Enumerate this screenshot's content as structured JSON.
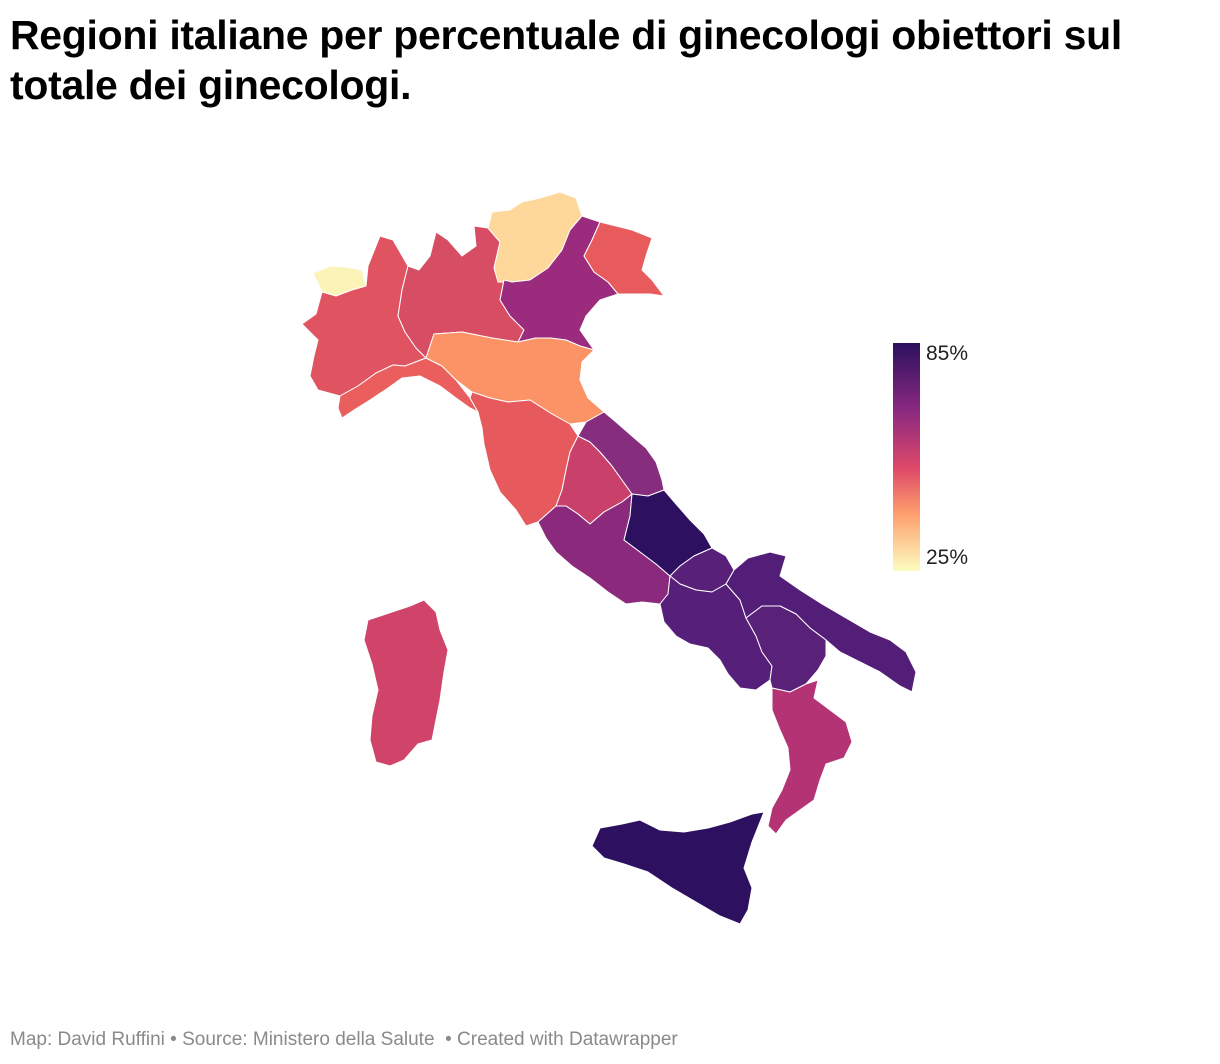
{
  "title": "Regioni italiane per percentuale di ginecologi obiettori sul totale dei ginecologi.",
  "legend": {
    "max_label": "85%",
    "min_label": "25%",
    "max_value": 85,
    "min_value": 25,
    "color_high": "#2c115f",
    "color_low": "#fcfdbf"
  },
  "footer": {
    "map_credit": "Map: David Ruffini",
    "source": "Source: Ministero della Salute",
    "created": "Created with Datawrapper",
    "separator": "•"
  },
  "regions": [
    {
      "name": "Valle d'Aosta",
      "value": 25,
      "color": "#fcf3b8"
    },
    {
      "name": "Piemonte",
      "value": 60,
      "color": "#df5460"
    },
    {
      "name": "Lombardia",
      "value": 61,
      "color": "#d74d64"
    },
    {
      "name": "Trentino-Alto Adige",
      "value": 35,
      "color": "#fed89b"
    },
    {
      "name": "Veneto",
      "value": 73,
      "color": "#9b2b7c"
    },
    {
      "name": "Friuli-Venezia Giulia",
      "value": 58,
      "color": "#e85b5d"
    },
    {
      "name": "Liguria",
      "value": 57,
      "color": "#ea5e5e"
    },
    {
      "name": "Emilia-Romagna",
      "value": 45,
      "color": "#fc9366"
    },
    {
      "name": "Toscana",
      "value": 57,
      "color": "#e65a5e"
    },
    {
      "name": "Umbria",
      "value": 65,
      "color": "#c9416b"
    },
    {
      "name": "Marche",
      "value": 73,
      "color": "#862d7e"
    },
    {
      "name": "Lazio",
      "value": 74,
      "color": "#8b2a7d"
    },
    {
      "name": "Abruzzo",
      "value": 84,
      "color": "#2d1160"
    },
    {
      "name": "Molise",
      "value": 80,
      "color": "#582079"
    },
    {
      "name": "Campania",
      "value": 80,
      "color": "#561f79"
    },
    {
      "name": "Puglia",
      "value": 80,
      "color": "#531e78"
    },
    {
      "name": "Basilicata",
      "value": 79,
      "color": "#5a2178"
    },
    {
      "name": "Calabria",
      "value": 70,
      "color": "#b33375"
    },
    {
      "name": "Sicilia",
      "value": 85,
      "color": "#2d1160"
    },
    {
      "name": "Sardegna",
      "value": 63,
      "color": "#cf4468"
    }
  ]
}
